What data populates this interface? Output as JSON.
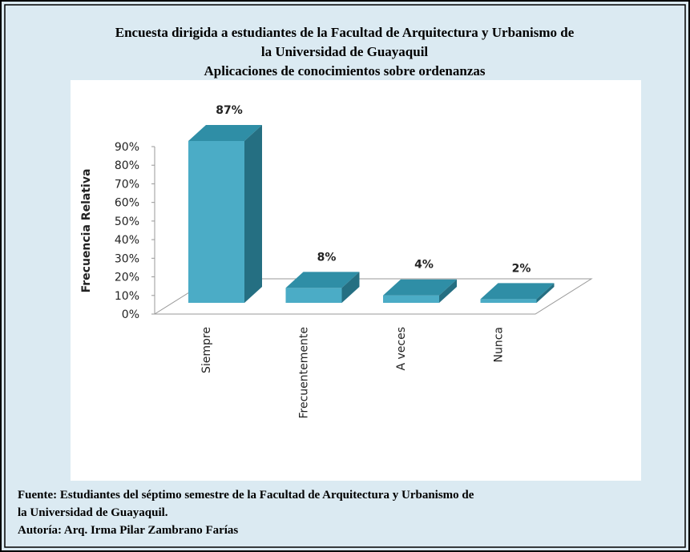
{
  "chart_data": {
    "type": "bar3d",
    "title": [
      "Encuesta dirigida a estudiantes de la Facultad de Arquitectura y Urbanismo de",
      "la Universidad de Guayaquil"
    ],
    "subtitle": "Aplicaciones de conocimientos sobre ordenanzas",
    "y_label": "Frecuencia Relativa",
    "categories": [
      "Siempre",
      "Frecuentemente",
      "A veces",
      "Nunca"
    ],
    "values": [
      87,
      8,
      4,
      2
    ],
    "value_labels": [
      "87%",
      "8%",
      "4%",
      "2%"
    ],
    "color": "#4bacc6",
    "ylim": [
      0,
      90
    ],
    "yticks": [
      {
        "value": 0,
        "label": "0%"
      },
      {
        "value": 10,
        "label": "10%"
      },
      {
        "value": 20,
        "label": "20%"
      },
      {
        "value": 30,
        "label": "30%"
      },
      {
        "value": 40,
        "label": "40%"
      },
      {
        "value": 50,
        "label": "50%"
      },
      {
        "value": 60,
        "label": "60%"
      },
      {
        "value": 70,
        "label": "70%"
      },
      {
        "value": 80,
        "label": "80%"
      },
      {
        "value": 90,
        "label": "90%"
      }
    ],
    "footer": [
      "Fuente: Estudiantes del séptimo semestre de la Facultad de Arquitectura y Urbanismo de",
      "la Universidad de Guayaquil.",
      "Autoría: Arq. Irma Pilar Zambrano Farías"
    ]
  }
}
